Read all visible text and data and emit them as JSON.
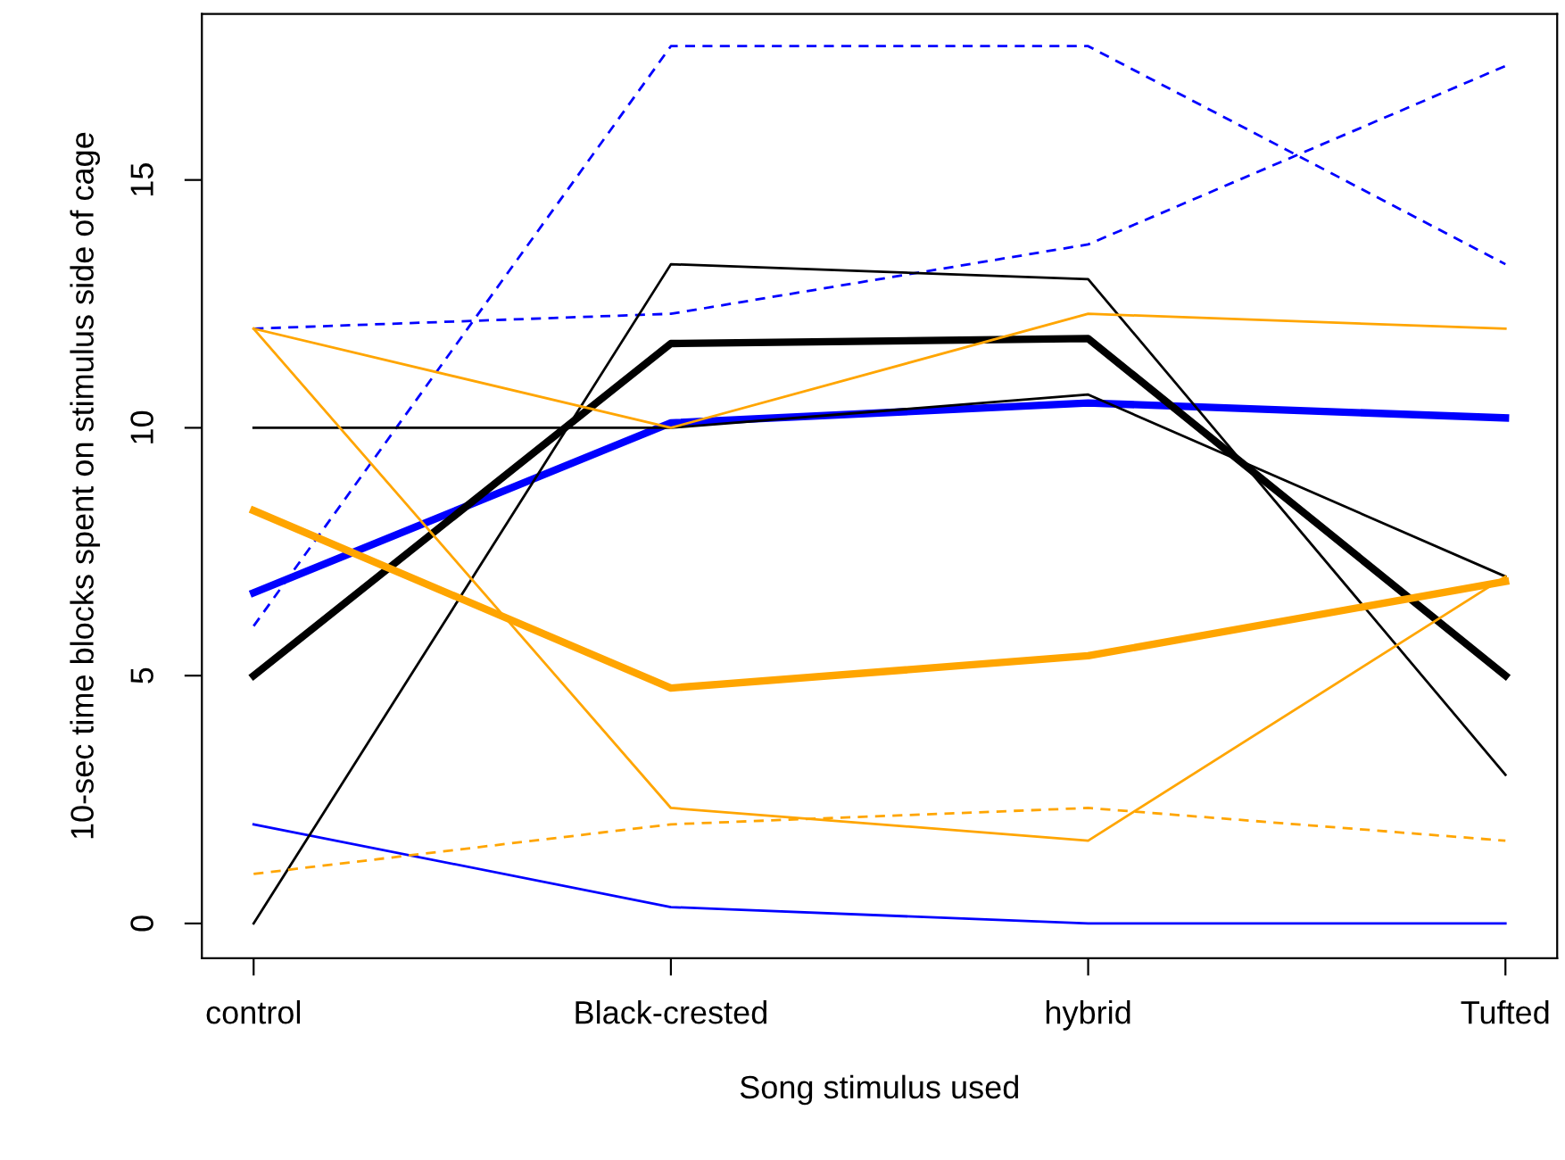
{
  "chart_data": {
    "type": "line",
    "xlabel": "Song stimulus used",
    "ylabel": "10-sec time blocks spent on stimulus side of cage",
    "categories": [
      "control",
      "Black-crested",
      "hybrid",
      "Tufted"
    ],
    "ylim": [
      -0.7,
      18.35
    ],
    "yticks": [
      0,
      5,
      10,
      15
    ],
    "grid": false,
    "legend": false,
    "marker": "none",
    "series": [
      {
        "color": "#0000ff",
        "line_style": "dashed",
        "values": [
          6,
          17.7,
          17.7,
          13.3
        ]
      },
      {
        "color": "#0000ff",
        "line_style": "dashed",
        "values": [
          12,
          12.3,
          13.7,
          17.3
        ]
      },
      {
        "color": "#0000ff",
        "line_style": "solid",
        "values": [
          2,
          0.33,
          0,
          0
        ]
      },
      {
        "color": "#0000ff",
        "line_style": "solid",
        "values": [
          6.67,
          10.1,
          10.5,
          10.2
        ]
      },
      {
        "color": "#000000",
        "line_style": "solid",
        "values": [
          10,
          10,
          10.67,
          7
        ]
      },
      {
        "color": "#000000",
        "line_style": "solid",
        "values": [
          0,
          13.3,
          13,
          3
        ]
      },
      {
        "color": "#000000",
        "line_style": "solid",
        "values": [
          5,
          11.7,
          11.8,
          5
        ]
      },
      {
        "color": "#ffa500",
        "line_style": "solid",
        "values": [
          12,
          10,
          12.3,
          12
        ]
      },
      {
        "color": "#ffa500",
        "line_style": "solid",
        "values": [
          12,
          2.33,
          1.67,
          7
        ]
      },
      {
        "color": "#ffa500",
        "line_style": "dashed",
        "values": [
          1,
          2,
          2.33,
          1.67
        ]
      },
      {
        "color": "#ffa500",
        "line_style": "solid",
        "values": [
          8.33,
          4.75,
          5.4,
          6.9
        ]
      }
    ]
  }
}
